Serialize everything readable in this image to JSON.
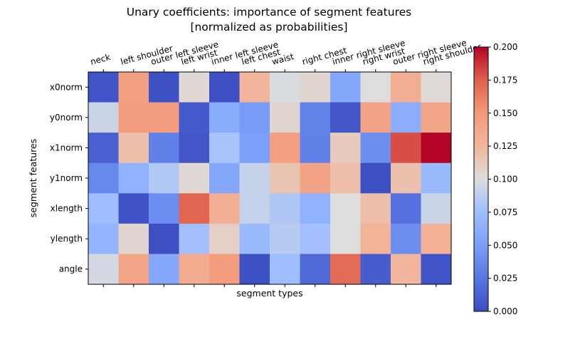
{
  "chart_data": {
    "type": "heatmap",
    "title": "Unary coefficients: importance of segment features",
    "subtitle": "[normalized as probabilities]",
    "xlabel": "segment types",
    "ylabel": "segment features",
    "x_categories": [
      "neck",
      "left shoulder",
      "outer left sleeve",
      "left wrist",
      "inner left sleeve",
      "left chest",
      "waist",
      "right chest",
      "inner right sleeve",
      "right wrist",
      "outer right sleeve",
      "right shoulder"
    ],
    "y_categories": [
      "x0norm",
      "y0norm",
      "x1norm",
      "y1norm",
      "xlength",
      "ylength",
      "angle"
    ],
    "values": [
      [
        0.005,
        0.145,
        0.003,
        0.103,
        0.002,
        0.125,
        0.098,
        0.105,
        0.058,
        0.1,
        0.132,
        0.102
      ],
      [
        0.093,
        0.147,
        0.147,
        0.008,
        0.06,
        0.048,
        0.105,
        0.033,
        0.006,
        0.142,
        0.062,
        0.14
      ],
      [
        0.012,
        0.12,
        0.032,
        0.006,
        0.079,
        0.051,
        0.145,
        0.032,
        0.112,
        0.04,
        0.18,
        0.201
      ],
      [
        0.036,
        0.065,
        0.083,
        0.103,
        0.058,
        0.091,
        0.116,
        0.142,
        0.12,
        0.003,
        0.118,
        0.072
      ],
      [
        0.075,
        0.004,
        0.04,
        0.173,
        0.132,
        0.09,
        0.082,
        0.065,
        0.1,
        0.12,
        0.022,
        0.093
      ],
      [
        0.068,
        0.105,
        0.002,
        0.077,
        0.109,
        0.072,
        0.085,
        0.077,
        0.1,
        0.127,
        0.04,
        0.13
      ],
      [
        0.096,
        0.14,
        0.058,
        0.135,
        0.147,
        0.003,
        0.075,
        0.017,
        0.17,
        0.01,
        0.125,
        0.005
      ]
    ],
    "colormap": "coolwarm",
    "vmin": 0.0,
    "vmax": 0.2,
    "colorbar_ticks": [
      "0.000",
      "0.025",
      "0.050",
      "0.075",
      "0.100",
      "0.125",
      "0.150",
      "0.175",
      "0.200"
    ],
    "x_tick_position": "top"
  }
}
